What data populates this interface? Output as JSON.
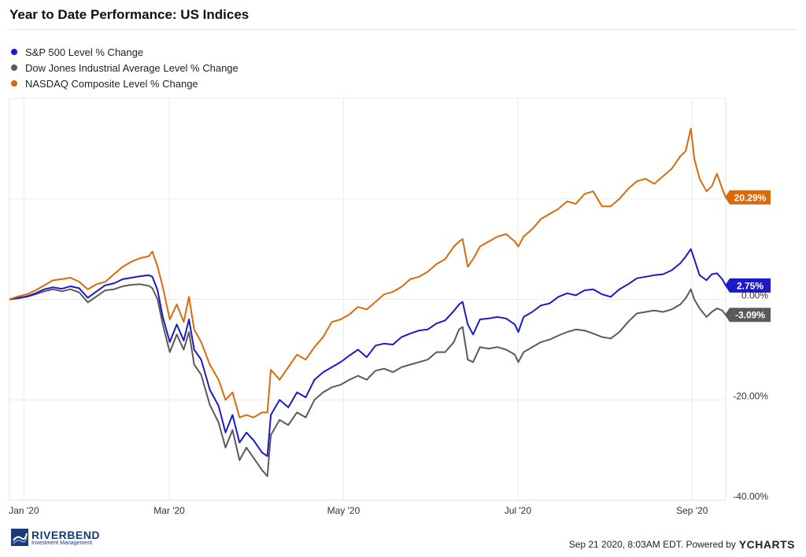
{
  "title": "Year to Date Performance: US Indices",
  "legend": [
    {
      "label": "S&P 500 Level % Change",
      "color": "#1a1ac8"
    },
    {
      "label": "Dow Jones Industrial Average Level % Change",
      "color": "#5a5a5a"
    },
    {
      "label": "NASDAQ Composite Level % Change",
      "color": "#d96b0c"
    }
  ],
  "footer": {
    "logo_name": "RIVERBEND",
    "logo_sub": "Investment Management",
    "source_text": "Sep 21 2020, 8:03AM EDT. Powered by",
    "brand": "YCHARTS"
  },
  "chart_data": {
    "type": "line",
    "xlabels": [
      "Jan '20",
      "Mar '20",
      "May '20",
      "Jul '20",
      "Sep '20"
    ],
    "xlabel_positions": [
      0.083,
      0.917,
      1.917,
      2.917,
      3.917
    ],
    "x_range": [
      0,
      4.11
    ],
    "ylim": [
      -40,
      40
    ],
    "yticks": [
      0,
      -20,
      -40
    ],
    "ytick_labels": [
      "0.00%",
      "-20.00%",
      "-40.00%"
    ],
    "grid": true,
    "legend_position": "top-left",
    "end_labels": [
      "2.75%",
      "-3.09%",
      "20.29%"
    ],
    "series": [
      {
        "name": "S&P 500 Level % Change",
        "color": "#1a1ac8",
        "points": [
          [
            0,
            0
          ],
          [
            0.05,
            0.3
          ],
          [
            0.1,
            0.6
          ],
          [
            0.15,
            1.2
          ],
          [
            0.2,
            2.0
          ],
          [
            0.25,
            2.4
          ],
          [
            0.3,
            2.1
          ],
          [
            0.35,
            2.6
          ],
          [
            0.4,
            2.2
          ],
          [
            0.45,
            0.3
          ],
          [
            0.5,
            1.6
          ],
          [
            0.55,
            2.8
          ],
          [
            0.6,
            3.2
          ],
          [
            0.65,
            4.0
          ],
          [
            0.7,
            4.3
          ],
          [
            0.75,
            4.6
          ],
          [
            0.8,
            4.8
          ],
          [
            0.82,
            4.5
          ],
          [
            0.85,
            1.8
          ],
          [
            0.88,
            -3.5
          ],
          [
            0.92,
            -8.5
          ],
          [
            0.96,
            -5.0
          ],
          [
            1.0,
            -8.2
          ],
          [
            1.03,
            -4.0
          ],
          [
            1.06,
            -10.0
          ],
          [
            1.1,
            -12.0
          ],
          [
            1.15,
            -18.0
          ],
          [
            1.2,
            -21.2
          ],
          [
            1.24,
            -26.5
          ],
          [
            1.28,
            -23.0
          ],
          [
            1.32,
            -28.5
          ],
          [
            1.36,
            -26.5
          ],
          [
            1.4,
            -28.0
          ],
          [
            1.45,
            -30.5
          ],
          [
            1.48,
            -31.2
          ],
          [
            1.5,
            -23.0
          ],
          [
            1.55,
            -20.0
          ],
          [
            1.6,
            -21.5
          ],
          [
            1.65,
            -18.5
          ],
          [
            1.7,
            -19.5
          ],
          [
            1.75,
            -16.0
          ],
          [
            1.8,
            -14.5
          ],
          [
            1.85,
            -13.5
          ],
          [
            1.9,
            -12.5
          ],
          [
            1.95,
            -11.2
          ],
          [
            2.0,
            -10.0
          ],
          [
            2.05,
            -11.5
          ],
          [
            2.1,
            -9.2
          ],
          [
            2.15,
            -8.8
          ],
          [
            2.2,
            -9.0
          ],
          [
            2.25,
            -7.5
          ],
          [
            2.3,
            -6.8
          ],
          [
            2.35,
            -6.2
          ],
          [
            2.4,
            -6.0
          ],
          [
            2.45,
            -4.8
          ],
          [
            2.5,
            -4.2
          ],
          [
            2.55,
            -2.3
          ],
          [
            2.58,
            -1.0
          ],
          [
            2.6,
            -0.5
          ],
          [
            2.63,
            -5.0
          ],
          [
            2.66,
            -7.0
          ],
          [
            2.7,
            -4.0
          ],
          [
            2.75,
            -3.8
          ],
          [
            2.8,
            -3.5
          ],
          [
            2.85,
            -3.8
          ],
          [
            2.9,
            -5.0
          ],
          [
            2.92,
            -6.5
          ],
          [
            2.95,
            -3.5
          ],
          [
            3.0,
            -2.5
          ],
          [
            3.05,
            -1.2
          ],
          [
            3.1,
            -0.8
          ],
          [
            3.15,
            0.5
          ],
          [
            3.2,
            1.2
          ],
          [
            3.25,
            0.8
          ],
          [
            3.3,
            1.8
          ],
          [
            3.35,
            2.0
          ],
          [
            3.4,
            1.0
          ],
          [
            3.45,
            0.5
          ],
          [
            3.5,
            2.0
          ],
          [
            3.55,
            3.0
          ],
          [
            3.6,
            4.2
          ],
          [
            3.65,
            4.5
          ],
          [
            3.7,
            4.8
          ],
          [
            3.75,
            5.0
          ],
          [
            3.8,
            5.8
          ],
          [
            3.85,
            7.2
          ],
          [
            3.88,
            8.5
          ],
          [
            3.91,
            10.0
          ],
          [
            3.93,
            8.0
          ],
          [
            3.96,
            4.8
          ],
          [
            4.0,
            3.8
          ],
          [
            4.03,
            5.0
          ],
          [
            4.06,
            5.2
          ],
          [
            4.09,
            4.0
          ],
          [
            4.11,
            2.75
          ]
        ]
      },
      {
        "name": "Dow Jones Industrial Average Level % Change",
        "color": "#5a5a5a",
        "points": [
          [
            0,
            0
          ],
          [
            0.05,
            0.2
          ],
          [
            0.1,
            0.5
          ],
          [
            0.15,
            1.0
          ],
          [
            0.2,
            1.6
          ],
          [
            0.25,
            2.0
          ],
          [
            0.3,
            1.6
          ],
          [
            0.35,
            2.0
          ],
          [
            0.4,
            1.4
          ],
          [
            0.45,
            -0.6
          ],
          [
            0.5,
            0.6
          ],
          [
            0.55,
            1.8
          ],
          [
            0.6,
            2.0
          ],
          [
            0.65,
            2.6
          ],
          [
            0.7,
            2.9
          ],
          [
            0.75,
            3.0
          ],
          [
            0.8,
            2.7
          ],
          [
            0.82,
            2.2
          ],
          [
            0.85,
            0.0
          ],
          [
            0.88,
            -5.0
          ],
          [
            0.92,
            -10.5
          ],
          [
            0.96,
            -7.0
          ],
          [
            1.0,
            -10.0
          ],
          [
            1.03,
            -6.5
          ],
          [
            1.06,
            -13.0
          ],
          [
            1.1,
            -15.0
          ],
          [
            1.15,
            -21.0
          ],
          [
            1.2,
            -24.5
          ],
          [
            1.24,
            -29.5
          ],
          [
            1.28,
            -26.0
          ],
          [
            1.32,
            -32.0
          ],
          [
            1.36,
            -29.5
          ],
          [
            1.4,
            -31.5
          ],
          [
            1.45,
            -34.0
          ],
          [
            1.48,
            -35.2
          ],
          [
            1.5,
            -27.0
          ],
          [
            1.55,
            -24.0
          ],
          [
            1.6,
            -25.0
          ],
          [
            1.65,
            -22.5
          ],
          [
            1.7,
            -23.5
          ],
          [
            1.75,
            -20.0
          ],
          [
            1.8,
            -18.5
          ],
          [
            1.85,
            -17.5
          ],
          [
            1.9,
            -17.0
          ],
          [
            1.95,
            -16.0
          ],
          [
            2.0,
            -15.2
          ],
          [
            2.05,
            -16.0
          ],
          [
            2.1,
            -14.2
          ],
          [
            2.15,
            -13.8
          ],
          [
            2.2,
            -14.5
          ],
          [
            2.25,
            -13.5
          ],
          [
            2.3,
            -13.0
          ],
          [
            2.35,
            -12.5
          ],
          [
            2.4,
            -12.0
          ],
          [
            2.45,
            -10.5
          ],
          [
            2.5,
            -10.5
          ],
          [
            2.55,
            -8.5
          ],
          [
            2.58,
            -6.0
          ],
          [
            2.6,
            -5.5
          ],
          [
            2.63,
            -12.0
          ],
          [
            2.66,
            -12.5
          ],
          [
            2.7,
            -9.5
          ],
          [
            2.75,
            -9.8
          ],
          [
            2.8,
            -9.5
          ],
          [
            2.85,
            -10.0
          ],
          [
            2.9,
            -11.0
          ],
          [
            2.92,
            -12.5
          ],
          [
            2.95,
            -10.5
          ],
          [
            3.0,
            -9.5
          ],
          [
            3.05,
            -8.5
          ],
          [
            3.1,
            -8.0
          ],
          [
            3.15,
            -7.2
          ],
          [
            3.2,
            -6.5
          ],
          [
            3.25,
            -6.0
          ],
          [
            3.3,
            -6.2
          ],
          [
            3.35,
            -6.8
          ],
          [
            3.4,
            -7.5
          ],
          [
            3.45,
            -7.8
          ],
          [
            3.5,
            -6.5
          ],
          [
            3.55,
            -4.5
          ],
          [
            3.6,
            -2.8
          ],
          [
            3.65,
            -2.5
          ],
          [
            3.7,
            -2.2
          ],
          [
            3.75,
            -2.5
          ],
          [
            3.8,
            -2.0
          ],
          [
            3.85,
            -1.0
          ],
          [
            3.88,
            0.2
          ],
          [
            3.91,
            2.0
          ],
          [
            3.93,
            0.0
          ],
          [
            3.96,
            -1.8
          ],
          [
            4.0,
            -3.5
          ],
          [
            4.03,
            -2.5
          ],
          [
            4.06,
            -1.8
          ],
          [
            4.09,
            -2.2
          ],
          [
            4.11,
            -3.09
          ]
        ]
      },
      {
        "name": "NASDAQ Composite Level % Change",
        "color": "#d96b0c",
        "points": [
          [
            0,
            0
          ],
          [
            0.05,
            0.6
          ],
          [
            0.1,
            1.0
          ],
          [
            0.15,
            1.8
          ],
          [
            0.2,
            2.8
          ],
          [
            0.25,
            3.8
          ],
          [
            0.3,
            4.0
          ],
          [
            0.35,
            4.3
          ],
          [
            0.4,
            3.5
          ],
          [
            0.45,
            2.0
          ],
          [
            0.5,
            3.0
          ],
          [
            0.55,
            3.5
          ],
          [
            0.6,
            5.0
          ],
          [
            0.65,
            6.5
          ],
          [
            0.7,
            7.5
          ],
          [
            0.75,
            8.2
          ],
          [
            0.8,
            8.6
          ],
          [
            0.82,
            9.5
          ],
          [
            0.85,
            6.5
          ],
          [
            0.88,
            2.5
          ],
          [
            0.92,
            -4.0
          ],
          [
            0.96,
            -1.0
          ],
          [
            1.0,
            -4.5
          ],
          [
            1.03,
            0.5
          ],
          [
            1.06,
            -6.0
          ],
          [
            1.1,
            -8.5
          ],
          [
            1.15,
            -13.0
          ],
          [
            1.2,
            -16.0
          ],
          [
            1.24,
            -20.0
          ],
          [
            1.28,
            -18.5
          ],
          [
            1.32,
            -23.5
          ],
          [
            1.36,
            -23.0
          ],
          [
            1.4,
            -23.5
          ],
          [
            1.45,
            -22.5
          ],
          [
            1.48,
            -22.5
          ],
          [
            1.5,
            -14.0
          ],
          [
            1.55,
            -16.0
          ],
          [
            1.6,
            -13.5
          ],
          [
            1.65,
            -11.0
          ],
          [
            1.7,
            -12.0
          ],
          [
            1.75,
            -9.5
          ],
          [
            1.8,
            -7.5
          ],
          [
            1.85,
            -4.5
          ],
          [
            1.9,
            -4.0
          ],
          [
            1.95,
            -3.0
          ],
          [
            2.0,
            -1.5
          ],
          [
            2.05,
            -2.0
          ],
          [
            2.1,
            -0.5
          ],
          [
            2.15,
            1.0
          ],
          [
            2.2,
            1.5
          ],
          [
            2.25,
            2.5
          ],
          [
            2.3,
            4.0
          ],
          [
            2.35,
            4.5
          ],
          [
            2.4,
            5.5
          ],
          [
            2.45,
            7.0
          ],
          [
            2.5,
            8.0
          ],
          [
            2.55,
            10.5
          ],
          [
            2.58,
            11.5
          ],
          [
            2.6,
            12.0
          ],
          [
            2.63,
            6.5
          ],
          [
            2.66,
            8.0
          ],
          [
            2.7,
            10.5
          ],
          [
            2.75,
            11.5
          ],
          [
            2.8,
            12.5
          ],
          [
            2.85,
            13.0
          ],
          [
            2.9,
            11.5
          ],
          [
            2.92,
            10.5
          ],
          [
            2.95,
            12.5
          ],
          [
            3.0,
            14.0
          ],
          [
            3.05,
            16.0
          ],
          [
            3.1,
            17.0
          ],
          [
            3.15,
            18.0
          ],
          [
            3.2,
            19.5
          ],
          [
            3.25,
            19.0
          ],
          [
            3.3,
            21.0
          ],
          [
            3.35,
            21.5
          ],
          [
            3.4,
            18.5
          ],
          [
            3.45,
            18.5
          ],
          [
            3.5,
            20.0
          ],
          [
            3.55,
            22.0
          ],
          [
            3.6,
            23.5
          ],
          [
            3.65,
            24.0
          ],
          [
            3.7,
            23.0
          ],
          [
            3.75,
            24.5
          ],
          [
            3.8,
            26.0
          ],
          [
            3.85,
            28.5
          ],
          [
            3.88,
            29.5
          ],
          [
            3.91,
            34.0
          ],
          [
            3.93,
            28.0
          ],
          [
            3.96,
            24.0
          ],
          [
            4.0,
            21.5
          ],
          [
            4.03,
            22.5
          ],
          [
            4.06,
            25.0
          ],
          [
            4.09,
            22.0
          ],
          [
            4.11,
            20.29
          ]
        ]
      }
    ]
  }
}
